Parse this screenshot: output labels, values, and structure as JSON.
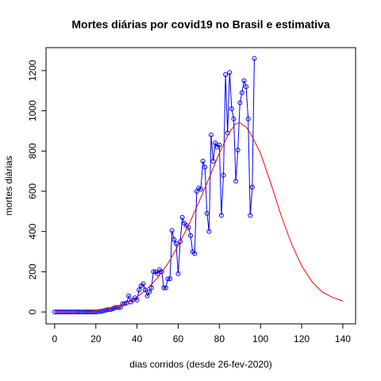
{
  "chart_data": {
    "type": "line",
    "title": "Mortes diárias por covid19  no Brasil e estimativa",
    "xlabel": "dias corridos (desde 26-fev-2020)",
    "ylabel": "mortes diárias",
    "xlim": [
      -4.2,
      146.2
    ],
    "ylim": [
      -59,
      1314
    ],
    "xticks": [
      0,
      20,
      40,
      60,
      80,
      100,
      120,
      140
    ],
    "yticks": [
      0,
      200,
      400,
      600,
      800,
      1000,
      1200
    ],
    "series": [
      {
        "color": "#0000ff",
        "markers": true,
        "x": [
          0,
          1,
          2,
          3,
          4,
          5,
          6,
          7,
          8,
          9,
          10,
          11,
          12,
          13,
          14,
          15,
          16,
          17,
          18,
          19,
          20,
          21,
          22,
          23,
          24,
          25,
          26,
          27,
          28,
          29,
          30,
          31,
          32,
          33,
          34,
          35,
          36,
          37,
          38,
          39,
          40,
          41,
          42,
          43,
          44,
          45,
          46,
          47,
          48,
          49,
          50,
          51,
          52,
          53,
          54,
          55,
          56,
          57,
          58,
          59,
          60,
          61,
          62,
          63,
          64,
          65,
          66,
          67,
          68,
          69,
          70,
          71,
          72,
          73,
          74,
          75,
          76,
          77,
          78,
          79,
          80,
          81,
          82,
          83,
          84,
          85,
          86,
          87,
          88,
          89,
          90,
          91,
          92,
          93,
          94,
          95,
          96,
          97
        ],
        "values": [
          0,
          0,
          0,
          0,
          0,
          0,
          0,
          0,
          0,
          0,
          0,
          0,
          0,
          0,
          0,
          0,
          0,
          0,
          0,
          0,
          0,
          1,
          3,
          4,
          7,
          9,
          12,
          11,
          15,
          20,
          23,
          22,
          25,
          40,
          42,
          45,
          80,
          50,
          60,
          70,
          60,
          110,
          130,
          140,
          110,
          80,
          100,
          120,
          200,
          200,
          190,
          210,
          200,
          120,
          120,
          165,
          165,
          405,
          360,
          340,
          190,
          350,
          470,
          440,
          430,
          420,
          380,
          300,
          290,
          600,
          615,
          610,
          750,
          720,
          490,
          400,
          880,
          750,
          840,
          820,
          830,
          480,
          680,
          1180,
          890,
          1190,
          1010,
          960,
          650,
          805,
          1040,
          1090,
          1150,
          1120,
          960,
          480,
          620,
          1260
        ]
      },
      {
        "color": "#ff0000",
        "markers": false,
        "x": [
          0,
          5,
          10,
          15,
          20,
          25,
          30,
          35,
          40,
          45,
          50,
          55,
          60,
          65,
          70,
          75,
          80,
          85,
          88,
          90,
          93,
          95,
          100,
          105,
          110,
          115,
          120,
          125,
          130,
          135,
          140
        ],
        "values": [
          0,
          0,
          1,
          3,
          7,
          15,
          27,
          45,
          75,
          115,
          170,
          240,
          330,
          430,
          545,
          665,
          790,
          895,
          935,
          940,
          920,
          890,
          790,
          640,
          480,
          340,
          230,
          150,
          100,
          72,
          55
        ]
      }
    ]
  }
}
